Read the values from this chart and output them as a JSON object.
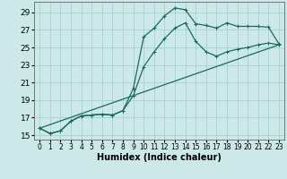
{
  "xlabel": "Humidex (Indice chaleur)",
  "bg_color": "#cce8e8",
  "grid_color": "#aad4d4",
  "line_color": "#1a6b5a",
  "xlim": [
    -0.5,
    23.5
  ],
  "ylim": [
    14.5,
    30.2
  ],
  "yticks": [
    15,
    17,
    19,
    21,
    23,
    25,
    27,
    29
  ],
  "xticks": [
    0,
    1,
    2,
    3,
    4,
    5,
    6,
    7,
    8,
    9,
    10,
    11,
    12,
    13,
    14,
    15,
    16,
    17,
    18,
    19,
    20,
    21,
    22,
    23
  ],
  "line1_x": [
    0,
    1,
    2,
    3,
    4,
    5,
    6,
    7,
    8,
    9,
    10,
    11,
    12,
    13,
    14,
    15,
    16,
    17,
    18,
    19,
    20,
    21,
    22,
    23
  ],
  "line1_y": [
    15.8,
    15.2,
    15.5,
    16.6,
    17.2,
    17.3,
    17.4,
    17.3,
    17.8,
    20.3,
    26.2,
    27.2,
    28.6,
    29.5,
    29.3,
    27.7,
    27.5,
    27.2,
    27.8,
    27.4,
    27.4,
    27.4,
    27.3,
    25.4
  ],
  "line2_x": [
    0,
    1,
    2,
    3,
    4,
    5,
    6,
    7,
    8,
    9,
    10,
    11,
    12,
    13,
    14,
    15,
    16,
    17,
    18,
    19,
    20,
    21,
    22,
    23
  ],
  "line2_y": [
    15.8,
    15.2,
    15.5,
    16.6,
    17.2,
    17.3,
    17.4,
    17.3,
    17.8,
    19.5,
    22.8,
    24.5,
    26.0,
    27.2,
    27.8,
    25.7,
    24.5,
    24.0,
    24.5,
    24.8,
    25.0,
    25.3,
    25.5,
    25.3
  ],
  "line3_x": [
    0,
    23
  ],
  "line3_y": [
    15.8,
    25.3
  ]
}
